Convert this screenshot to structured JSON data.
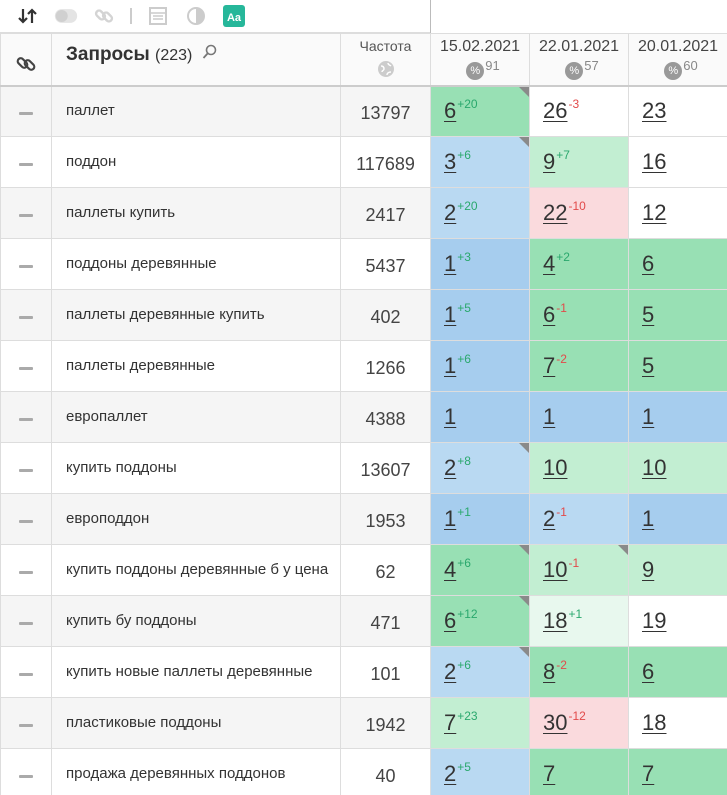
{
  "toolbar": {
    "icons": [
      "sort-icon",
      "toggle-icon",
      "link-icon",
      "calendar-icon",
      "contrast-icon",
      "text-aa-icon"
    ],
    "text_icon_label": "Aa"
  },
  "header": {
    "query_title": "Запросы",
    "query_count": "(223)",
    "freq_title": "Частота",
    "dates": [
      {
        "date": "15.02.2021",
        "pct_symbol": "%",
        "pct": "91"
      },
      {
        "date": "22.01.2021",
        "pct_symbol": "%",
        "pct": "57"
      },
      {
        "date": "20.01.2021",
        "pct_symbol": "%",
        "pct": "60"
      }
    ]
  },
  "rows": [
    {
      "query": "паллет",
      "freq": "13797",
      "positions": [
        {
          "value": "6",
          "delta": "+20",
          "trend": "up",
          "color": "green",
          "corner": true
        },
        {
          "value": "26",
          "delta": "-3",
          "trend": "down",
          "color": "white",
          "corner": false
        },
        {
          "value": "23",
          "delta": "",
          "trend": "",
          "color": "white",
          "corner": false
        }
      ]
    },
    {
      "query": "поддон",
      "freq": "117689",
      "positions": [
        {
          "value": "3",
          "delta": "+6",
          "trend": "up",
          "color": "lblue",
          "corner": true
        },
        {
          "value": "9",
          "delta": "+7",
          "trend": "up",
          "color": "lgreen",
          "corner": false
        },
        {
          "value": "16",
          "delta": "",
          "trend": "",
          "color": "white",
          "corner": false
        }
      ]
    },
    {
      "query": "паллеты купить",
      "freq": "2417",
      "positions": [
        {
          "value": "2",
          "delta": "+20",
          "trend": "up",
          "color": "lblue",
          "corner": false
        },
        {
          "value": "22",
          "delta": "-10",
          "trend": "down",
          "color": "pink",
          "corner": false
        },
        {
          "value": "12",
          "delta": "",
          "trend": "",
          "color": "white",
          "corner": false
        }
      ]
    },
    {
      "query": "поддоны деревянные",
      "freq": "5437",
      "positions": [
        {
          "value": "1",
          "delta": "+3",
          "trend": "up",
          "color": "blue",
          "corner": false
        },
        {
          "value": "4",
          "delta": "+2",
          "trend": "up",
          "color": "green",
          "corner": false
        },
        {
          "value": "6",
          "delta": "",
          "trend": "",
          "color": "green",
          "corner": false
        }
      ]
    },
    {
      "query": "паллеты деревянные купить",
      "freq": "402",
      "positions": [
        {
          "value": "1",
          "delta": "+5",
          "trend": "up",
          "color": "blue",
          "corner": false
        },
        {
          "value": "6",
          "delta": "-1",
          "trend": "down",
          "color": "green",
          "corner": false
        },
        {
          "value": "5",
          "delta": "",
          "trend": "",
          "color": "green",
          "corner": false
        }
      ]
    },
    {
      "query": "паллеты деревянные",
      "freq": "1266",
      "positions": [
        {
          "value": "1",
          "delta": "+6",
          "trend": "up",
          "color": "blue",
          "corner": false
        },
        {
          "value": "7",
          "delta": "-2",
          "trend": "down",
          "color": "green",
          "corner": false
        },
        {
          "value": "5",
          "delta": "",
          "trend": "",
          "color": "green",
          "corner": false
        }
      ]
    },
    {
      "query": "европаллет",
      "freq": "4388",
      "positions": [
        {
          "value": "1",
          "delta": "",
          "trend": "",
          "color": "blue",
          "corner": false
        },
        {
          "value": "1",
          "delta": "",
          "trend": "",
          "color": "blue",
          "corner": false
        },
        {
          "value": "1",
          "delta": "",
          "trend": "",
          "color": "blue",
          "corner": false
        }
      ]
    },
    {
      "query": "купить поддоны",
      "freq": "13607",
      "positions": [
        {
          "value": "2",
          "delta": "+8",
          "trend": "up",
          "color": "lblue",
          "corner": true
        },
        {
          "value": "10",
          "delta": "",
          "trend": "",
          "color": "lgreen",
          "corner": false
        },
        {
          "value": "10",
          "delta": "",
          "trend": "",
          "color": "lgreen",
          "corner": false
        }
      ]
    },
    {
      "query": "европоддон",
      "freq": "1953",
      "positions": [
        {
          "value": "1",
          "delta": "+1",
          "trend": "up",
          "color": "blue",
          "corner": false
        },
        {
          "value": "2",
          "delta": "-1",
          "trend": "down",
          "color": "lblue",
          "corner": false
        },
        {
          "value": "1",
          "delta": "",
          "trend": "",
          "color": "blue",
          "corner": false
        }
      ]
    },
    {
      "query": "купить поддоны деревянные б у цена",
      "freq": "62",
      "positions": [
        {
          "value": "4",
          "delta": "+6",
          "trend": "up",
          "color": "green",
          "corner": true
        },
        {
          "value": "10",
          "delta": "-1",
          "trend": "down",
          "color": "lgreen",
          "corner": true
        },
        {
          "value": "9",
          "delta": "",
          "trend": "",
          "color": "lgreen",
          "corner": false
        }
      ]
    },
    {
      "query": "купить бу поддоны",
      "freq": "471",
      "positions": [
        {
          "value": "6",
          "delta": "+12",
          "trend": "up",
          "color": "green",
          "corner": true
        },
        {
          "value": "18",
          "delta": "+1",
          "trend": "up",
          "color": "vlgreen",
          "corner": false
        },
        {
          "value": "19",
          "delta": "",
          "trend": "",
          "color": "white",
          "corner": false
        }
      ]
    },
    {
      "query": "купить новые паллеты деревянные",
      "freq": "101",
      "positions": [
        {
          "value": "2",
          "delta": "+6",
          "trend": "up",
          "color": "lblue",
          "corner": true
        },
        {
          "value": "8",
          "delta": "-2",
          "trend": "down",
          "color": "green",
          "corner": false
        },
        {
          "value": "6",
          "delta": "",
          "trend": "",
          "color": "green",
          "corner": false
        }
      ]
    },
    {
      "query": "пластиковые поддоны",
      "freq": "1942",
      "positions": [
        {
          "value": "7",
          "delta": "+23",
          "trend": "up",
          "color": "lgreen",
          "corner": false
        },
        {
          "value": "30",
          "delta": "-12",
          "trend": "down",
          "color": "pink",
          "corner": false
        },
        {
          "value": "18",
          "delta": "",
          "trend": "",
          "color": "white",
          "corner": false
        }
      ]
    },
    {
      "query": "продажа деревянных поддонов",
      "freq": "40",
      "positions": [
        {
          "value": "2",
          "delta": "+5",
          "trend": "up",
          "color": "lblue",
          "corner": false
        },
        {
          "value": "7",
          "delta": "",
          "trend": "",
          "color": "green",
          "corner": false
        },
        {
          "value": "7",
          "delta": "",
          "trend": "",
          "color": "green",
          "corner": false
        }
      ]
    }
  ]
}
